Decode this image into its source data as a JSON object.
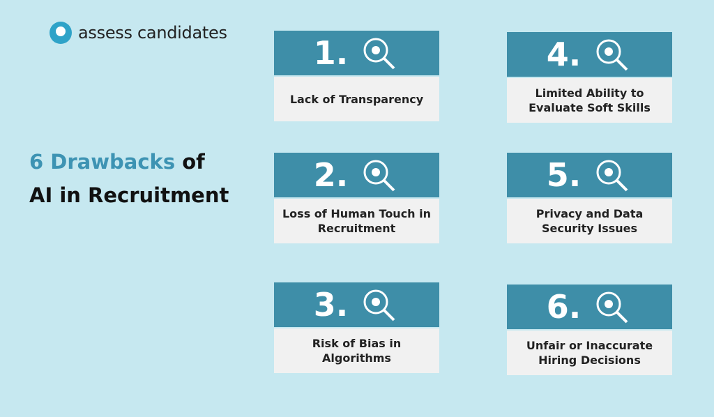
{
  "logo": {
    "text": "assess candidates"
  },
  "title": {
    "highlight": "6 Drawbacks",
    "rest": "of",
    "line2": "AI in Recruitment"
  },
  "cards": [
    {
      "number": "1.",
      "label": "Lack of Transparency"
    },
    {
      "number": "2.",
      "label": "Loss of Human Touch in Recruitment"
    },
    {
      "number": "3.",
      "label": "Risk of Bias in Algorithms"
    },
    {
      "number": "4.",
      "label": "Limited Ability to Evaluate Soft Skills"
    },
    {
      "number": "5.",
      "label": "Privacy and Data Security Issues"
    },
    {
      "number": "6.",
      "label": "Unfair or Inaccurate Hiring Decisions"
    }
  ]
}
